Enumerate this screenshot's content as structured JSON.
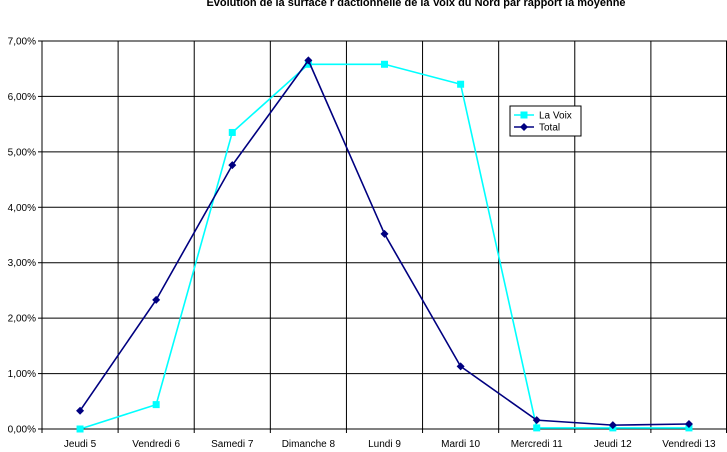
{
  "chart_data": {
    "type": "line",
    "title": "Evolution de la surface r  dactionnelle de la Voix du Nord par rapport    la moyenne",
    "categories": [
      "Jeudi 5",
      "Vendredi 6",
      "Samedi 7",
      "Dimanche 8",
      "Lundi 9",
      "Mardi 10",
      "Mercredi 11",
      "Jeudi 12",
      "Vendredi 13"
    ],
    "y_ticks": [
      "0,00%",
      "1,00%",
      "2,00%",
      "3,00%",
      "4,00%",
      "5,00%",
      "6,00%",
      "7,00%"
    ],
    "ylim": [
      0,
      7
    ],
    "grid": true,
    "legend_position": "right",
    "series": [
      {
        "name": "La Voix",
        "values": [
          0.0,
          0.44,
          5.35,
          6.58,
          6.58,
          6.22,
          0.02,
          0.02,
          0.02
        ],
        "color": "#00ffff",
        "marker": "square"
      },
      {
        "name": "Total",
        "values": [
          0.33,
          2.33,
          4.76,
          6.65,
          3.52,
          1.13,
          0.16,
          0.07,
          0.09
        ],
        "color": "#000080",
        "marker": "diamond"
      }
    ]
  }
}
